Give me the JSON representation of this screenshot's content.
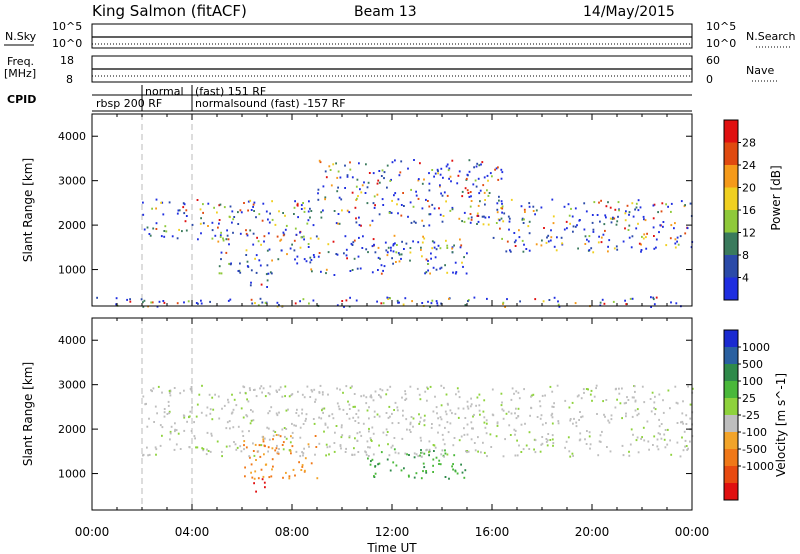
{
  "header": {
    "station": "King Salmon (fitACF)",
    "beam": "Beam 13",
    "date": "14/May/2015"
  },
  "status": {
    "nsky_label": "N.Sky",
    "nsearch_label": "N.Search",
    "freq_label_line1": "Freq.",
    "freq_label_line2": "[MHz]",
    "nave_label": "Nave",
    "cpid_label": "CPID",
    "left_ticks_top": [
      "10^5",
      "10^0"
    ],
    "right_ticks_top": [
      "10^5",
      "10^0"
    ],
    "left_ticks_freq": [
      "18",
      "8"
    ],
    "right_ticks_nave": [
      "60",
      "0"
    ],
    "modes": [
      {
        "name": "rbsp 200 RF",
        "start_hour": 0.0
      },
      {
        "name": "normal",
        "start_hour": 2.0
      },
      {
        "name": "(fast) 151 RF",
        "start_hour": 4.0
      },
      {
        "name": "normalsound (fast) -157 RF",
        "start_hour": 4.0
      }
    ]
  },
  "chart_data": [
    {
      "type": "heatmap",
      "panel": "power",
      "ylabel": "Slant Range [km]",
      "xlabel": "",
      "xlim": [
        0,
        24
      ],
      "ylim": [
        180,
        4500
      ],
      "yticks": [
        1000,
        2000,
        3000,
        4000
      ],
      "colorbar": {
        "label": "Power [dB]",
        "ticks": [
          "4",
          "8",
          "12",
          "16",
          "20",
          "24",
          "28"
        ],
        "colors": [
          "#1f2ee0",
          "#2b4aa8",
          "#3a7a5c",
          "#8fc93a",
          "#f0d020",
          "#f59a1a",
          "#e04a10",
          "#e01010"
        ]
      },
      "echo_bands": [
        {
          "start_hour": 2.0,
          "end_hour": 9.0,
          "range_start_km": 1700,
          "range_end_km": 2600
        },
        {
          "start_hour": 5.0,
          "end_hour": 15.0,
          "range_start_km": 900,
          "range_end_km": 1800
        },
        {
          "start_hour": 6.3,
          "end_hour": 7.0,
          "range_start_km": 600,
          "range_end_km": 900
        },
        {
          "start_hour": 9.0,
          "end_hour": 16.5,
          "range_start_km": 2000,
          "range_end_km": 3500
        },
        {
          "start_hour": 16.0,
          "end_hour": 24.0,
          "range_start_km": 1400,
          "range_end_km": 2600
        },
        {
          "start_hour": 0.0,
          "end_hour": 24.0,
          "range_start_km": 180,
          "range_end_km": 400
        }
      ]
    },
    {
      "type": "heatmap",
      "panel": "velocity",
      "ylabel": "Slant Range [km]",
      "xlabel": "Time UT",
      "xlim": [
        0,
        24
      ],
      "ylim": [
        180,
        4500
      ],
      "yticks": [
        1000,
        2000,
        3000,
        4000
      ],
      "xticks": [
        "00:00",
        "04:00",
        "08:00",
        "12:00",
        "16:00",
        "20:00",
        "00:00"
      ],
      "colorbar": {
        "label": "Velocity [m s^-1]",
        "ticks": [
          "1000",
          "500",
          "100",
          "25",
          "-25",
          "-100",
          "-500",
          "-1000"
        ],
        "colors": [
          "#1a2ad0",
          "#2a60a0",
          "#2f8a4a",
          "#4ab83a",
          "#8ed23c",
          "#bebebe",
          "#f2a42a",
          "#f07818",
          "#e84a10",
          "#e01010"
        ]
      },
      "echo_bands": [
        {
          "start_hour": 6.0,
          "end_hour": 9.0,
          "range_start_km": 900,
          "range_end_km": 1900,
          "velocity_m_s": -300
        },
        {
          "start_hour": 11.0,
          "end_hour": 15.0,
          "range_start_km": 900,
          "range_end_km": 1600,
          "velocity_m_s": 60
        },
        {
          "start_hour": 2.0,
          "end_hour": 24.0,
          "range_start_km": 1400,
          "range_end_km": 3000,
          "velocity_m_s": 0
        },
        {
          "start_hour": 6.3,
          "end_hour": 7.0,
          "range_start_km": 600,
          "range_end_km": 900,
          "velocity_m_s": -600
        }
      ]
    }
  ],
  "colors": {
    "dashed_marker": "#bbbbbb",
    "axis": "#000000"
  }
}
